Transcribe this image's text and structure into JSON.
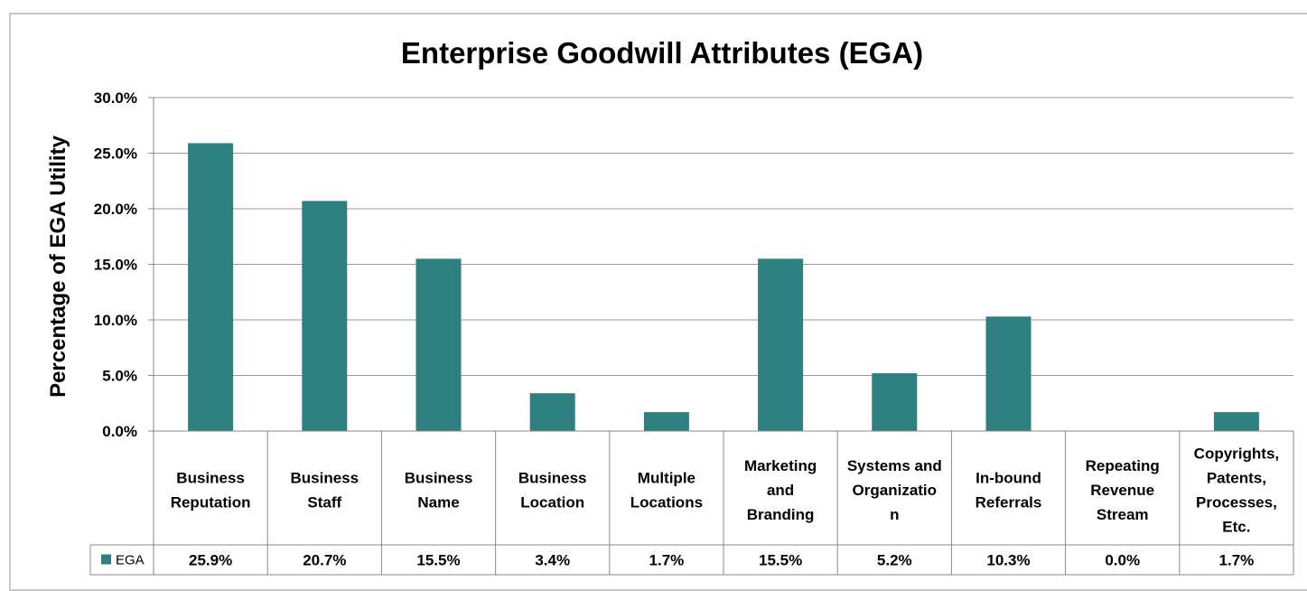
{
  "chart_data": {
    "type": "bar",
    "title": "Enterprise Goodwill Attributes (EGA)",
    "ylabel": "Percentage of EGA Utility",
    "xlabel": "",
    "ylim": [
      0,
      30
    ],
    "yticks": [
      "0.0%",
      "5.0%",
      "10.0%",
      "15.0%",
      "20.0%",
      "25.0%",
      "30.0%"
    ],
    "grid": true,
    "categories": [
      [
        "Business",
        "Reputation"
      ],
      [
        "Business",
        "Staff"
      ],
      [
        "Business",
        "Name"
      ],
      [
        "Business",
        "Location"
      ],
      [
        "Multiple",
        "Locations"
      ],
      [
        "Marketing",
        "and",
        "Branding"
      ],
      [
        "Systems and",
        "Organizatio",
        "n"
      ],
      [
        "In-bound",
        "Referrals"
      ],
      [
        "Repeating",
        "Revenue",
        "Stream"
      ],
      [
        "Copyrights,",
        "Patents,",
        "Processes,",
        "Etc."
      ]
    ],
    "series": [
      {
        "name": "EGA",
        "color": "#2e7f80",
        "values": [
          25.9,
          20.7,
          15.5,
          3.4,
          1.7,
          15.5,
          5.2,
          10.3,
          0.0,
          1.7
        ],
        "labels": [
          "25.9%",
          "20.7%",
          "15.5%",
          "3.4%",
          "1.7%",
          "15.5%",
          "5.2%",
          "10.3%",
          "0.0%",
          "1.7%"
        ]
      }
    ],
    "legend": "data-table"
  }
}
